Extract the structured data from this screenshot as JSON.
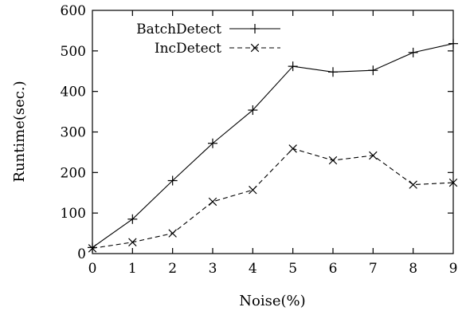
{
  "chart_data": {
    "type": "line",
    "title": "",
    "xlabel": "Noise(%)",
    "ylabel": "Runtime(sec.)",
    "xlim": [
      0,
      9
    ],
    "ylim": [
      0,
      600
    ],
    "xticks": [
      "0",
      "1",
      "2",
      "3",
      "4",
      "5",
      "6",
      "7",
      "8",
      "9"
    ],
    "yticks": [
      "0",
      "100",
      "200",
      "300",
      "400",
      "500",
      "600"
    ],
    "grid": false,
    "legend_position": "top-right",
    "x": [
      0,
      1,
      2,
      3,
      4,
      5,
      6,
      7,
      8,
      9
    ],
    "series": [
      {
        "name": "BatchDetect",
        "marker": "plus",
        "line_style": "solid",
        "color": "#000000",
        "values": [
          15,
          85,
          180,
          272,
          354,
          462,
          448,
          452,
          496,
          518
        ]
      },
      {
        "name": "IncDetect",
        "marker": "cross",
        "line_style": "dashed",
        "color": "#000000",
        "values": [
          13,
          28,
          50,
          128,
          157,
          259,
          230,
          242,
          170,
          175
        ]
      }
    ]
  }
}
